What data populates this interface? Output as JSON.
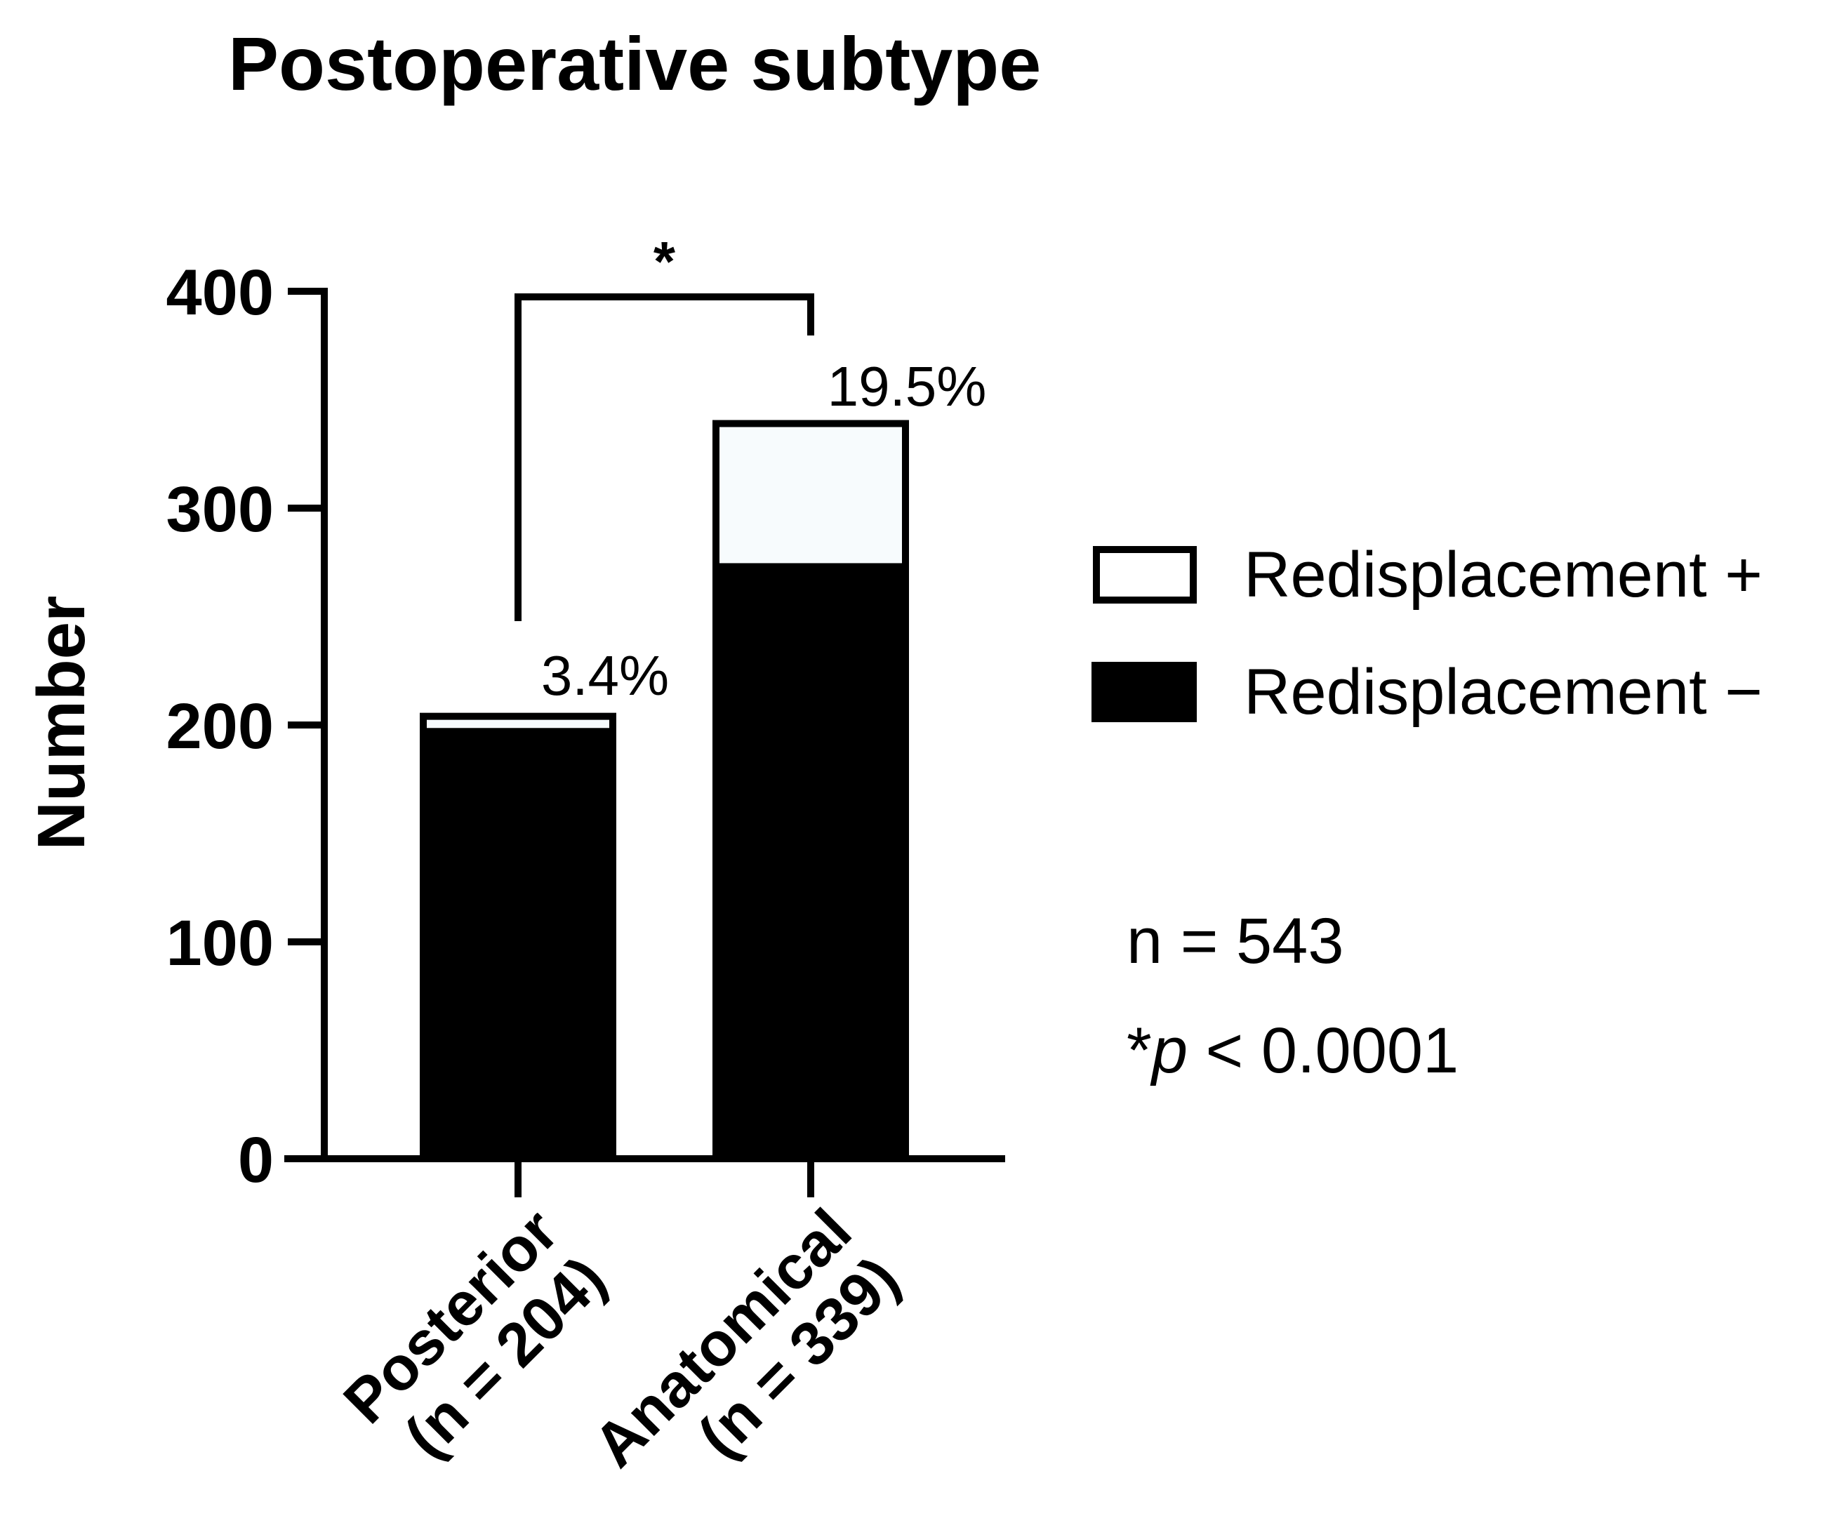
{
  "chart_data": {
    "type": "bar",
    "stacked": true,
    "title": "Postoperative subtype",
    "xlabel": "",
    "ylabel": "Number",
    "ylim": [
      0,
      400
    ],
    "yticks": [
      0,
      100,
      200,
      300,
      400
    ],
    "categories": [
      {
        "label": "Posterior",
        "sublabel": "(n = 204)"
      },
      {
        "label": "Anatomical",
        "sublabel": "(n = 339)"
      }
    ],
    "series": [
      {
        "name": "Redisplacement −",
        "values": [
          197,
          273
        ],
        "color": "#000000"
      },
      {
        "name": "Redisplacement +",
        "values": [
          7,
          66
        ],
        "color": "#f7fbfd"
      }
    ],
    "totals": [
      204,
      339
    ],
    "data_labels": [
      "3.4%",
      "19.5%"
    ],
    "significance": {
      "marker": "*",
      "between": [
        0,
        1
      ]
    },
    "annotations": {
      "n_total": "n = 543",
      "p_prefix": "*",
      "p_symbol": "p",
      "p_rest": " < 0.0001"
    },
    "legend": {
      "position": "right"
    }
  }
}
